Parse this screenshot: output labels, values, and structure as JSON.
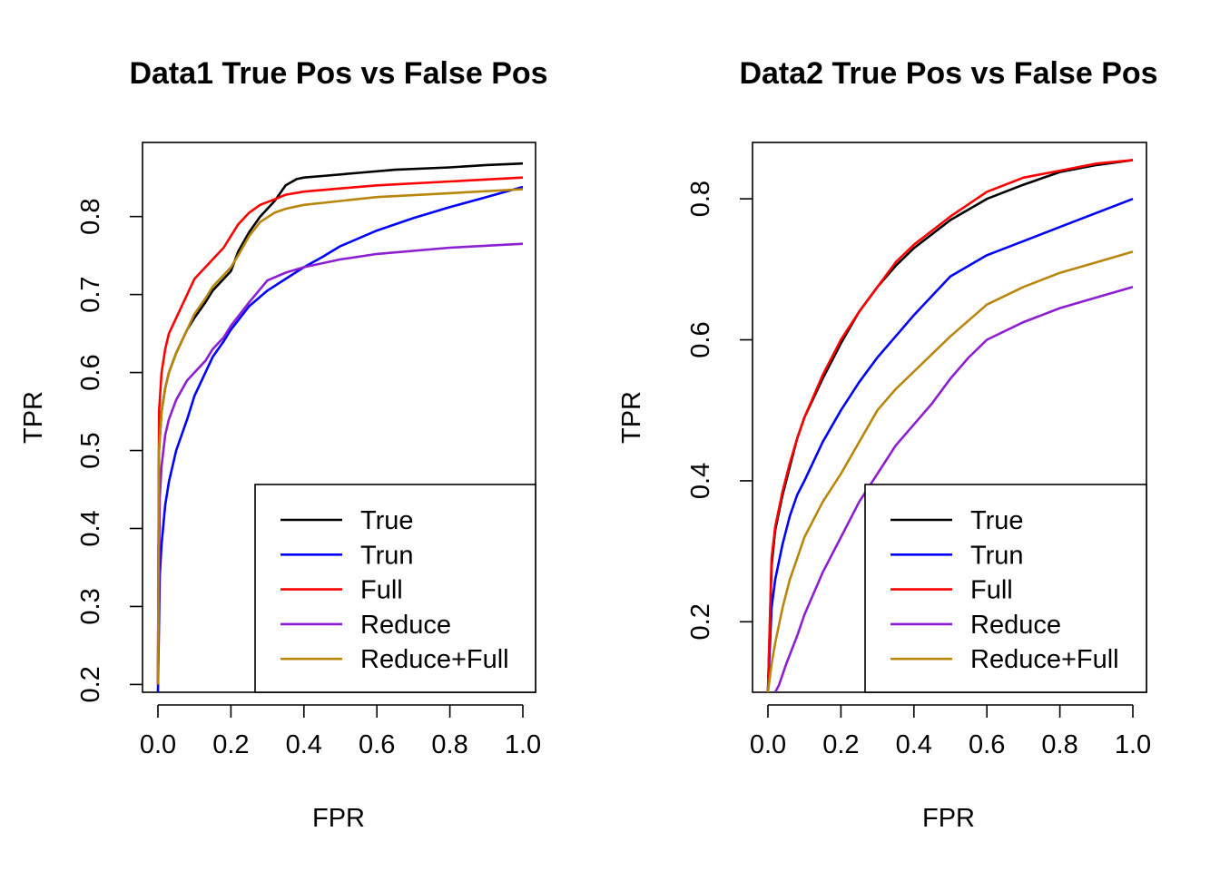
{
  "chart_data": [
    {
      "type": "line",
      "title": "Data1 True Pos vs False Pos",
      "xlabel": "FPR",
      "ylabel": "TPR",
      "xlim": [
        0,
        1
      ],
      "ylim": [
        0.19,
        0.895
      ],
      "xticks": [
        0,
        0.2,
        0.4,
        0.6,
        0.8,
        1
      ],
      "xtick_labels": [
        "0.0",
        "0.2",
        "0.4",
        "0.6",
        "0.8",
        "1.0"
      ],
      "yticks": [
        0.2,
        0.3,
        0.4,
        0.5,
        0.6,
        0.7,
        0.8
      ],
      "ytick_labels": [
        "0.2",
        "0.3",
        "0.4",
        "0.5",
        "0.6",
        "0.7",
        "0.8"
      ],
      "legend_position": "bottom-right",
      "series": [
        {
          "name": "True",
          "color": "#000000",
          "x": [
            0,
            0.003,
            0.01,
            0.02,
            0.03,
            0.05,
            0.08,
            0.1,
            0.13,
            0.15,
            0.18,
            0.2,
            0.22,
            0.25,
            0.28,
            0.32,
            0.35,
            0.38,
            0.4,
            0.45,
            0.55,
            0.65,
            0.8,
            0.9,
            1.0
          ],
          "y": [
            0.2,
            0.5,
            0.55,
            0.58,
            0.6,
            0.625,
            0.655,
            0.67,
            0.69,
            0.705,
            0.72,
            0.73,
            0.755,
            0.78,
            0.8,
            0.82,
            0.84,
            0.848,
            0.85,
            0.852,
            0.856,
            0.86,
            0.863,
            0.866,
            0.868
          ]
        },
        {
          "name": "Trun",
          "color": "#0000ff",
          "x": [
            0,
            0.005,
            0.01,
            0.02,
            0.03,
            0.05,
            0.08,
            0.1,
            0.13,
            0.15,
            0.18,
            0.2,
            0.25,
            0.3,
            0.35,
            0.4,
            0.45,
            0.5,
            0.6,
            0.7,
            0.8,
            0.9,
            1.0
          ],
          "y": [
            0.19,
            0.34,
            0.38,
            0.43,
            0.46,
            0.5,
            0.54,
            0.57,
            0.6,
            0.62,
            0.64,
            0.655,
            0.685,
            0.705,
            0.72,
            0.735,
            0.748,
            0.762,
            0.782,
            0.798,
            0.812,
            0.825,
            0.838
          ]
        },
        {
          "name": "Full",
          "color": "#ff0000",
          "x": [
            0,
            0.003,
            0.01,
            0.02,
            0.03,
            0.05,
            0.08,
            0.1,
            0.13,
            0.15,
            0.18,
            0.2,
            0.22,
            0.25,
            0.28,
            0.32,
            0.35,
            0.4,
            0.5,
            0.6,
            0.8,
            1.0
          ],
          "y": [
            0.2,
            0.55,
            0.6,
            0.63,
            0.65,
            0.67,
            0.7,
            0.72,
            0.735,
            0.745,
            0.76,
            0.775,
            0.79,
            0.805,
            0.815,
            0.822,
            0.828,
            0.832,
            0.836,
            0.84,
            0.845,
            0.85
          ]
        },
        {
          "name": "Reduce",
          "color": "#8b1fd1",
          "x": [
            0,
            0.005,
            0.01,
            0.02,
            0.03,
            0.05,
            0.08,
            0.1,
            0.13,
            0.15,
            0.18,
            0.2,
            0.25,
            0.3,
            0.35,
            0.4,
            0.5,
            0.6,
            0.8,
            1.0
          ],
          "y": [
            0.2,
            0.44,
            0.48,
            0.52,
            0.54,
            0.565,
            0.59,
            0.6,
            0.615,
            0.63,
            0.645,
            0.66,
            0.69,
            0.718,
            0.728,
            0.735,
            0.745,
            0.752,
            0.76,
            0.765
          ]
        },
        {
          "name": "Reduce+Full",
          "color": "#b8860b",
          "x": [
            0,
            0.003,
            0.01,
            0.02,
            0.03,
            0.05,
            0.08,
            0.1,
            0.13,
            0.15,
            0.18,
            0.2,
            0.22,
            0.25,
            0.28,
            0.32,
            0.35,
            0.4,
            0.5,
            0.6,
            0.8,
            1.0
          ],
          "y": [
            0.2,
            0.5,
            0.55,
            0.58,
            0.6,
            0.625,
            0.655,
            0.675,
            0.695,
            0.71,
            0.725,
            0.735,
            0.75,
            0.775,
            0.793,
            0.805,
            0.81,
            0.815,
            0.82,
            0.825,
            0.83,
            0.835
          ]
        }
      ]
    },
    {
      "type": "line",
      "title": "Data2 True Pos vs False Pos",
      "xlabel": "FPR",
      "ylabel": "TPR",
      "xlim": [
        0,
        1
      ],
      "ylim": [
        0.1,
        0.88
      ],
      "xticks": [
        0,
        0.2,
        0.4,
        0.6,
        0.8,
        1
      ],
      "xtick_labels": [
        "0.0",
        "0.2",
        "0.4",
        "0.6",
        "0.8",
        "1.0"
      ],
      "yticks": [
        0.2,
        0.4,
        0.6,
        0.8
      ],
      "ytick_labels": [
        "0.2",
        "0.4",
        "0.6",
        "0.8"
      ],
      "legend_position": "bottom-right",
      "series": [
        {
          "name": "True",
          "color": "#000000",
          "x": [
            0,
            0.01,
            0.02,
            0.04,
            0.06,
            0.08,
            0.1,
            0.15,
            0.2,
            0.25,
            0.3,
            0.35,
            0.4,
            0.5,
            0.6,
            0.7,
            0.8,
            0.9,
            1.0
          ],
          "y": [
            0.1,
            0.28,
            0.33,
            0.38,
            0.42,
            0.46,
            0.49,
            0.545,
            0.595,
            0.64,
            0.675,
            0.705,
            0.73,
            0.77,
            0.8,
            0.82,
            0.838,
            0.848,
            0.855
          ]
        },
        {
          "name": "Trun",
          "color": "#0000ff",
          "x": [
            0,
            0.01,
            0.02,
            0.04,
            0.06,
            0.08,
            0.1,
            0.15,
            0.2,
            0.25,
            0.3,
            0.35,
            0.4,
            0.5,
            0.6,
            0.7,
            0.8,
            0.9,
            1.0
          ],
          "y": [
            0.1,
            0.22,
            0.26,
            0.31,
            0.35,
            0.38,
            0.4,
            0.455,
            0.5,
            0.54,
            0.575,
            0.605,
            0.635,
            0.69,
            0.72,
            0.74,
            0.76,
            0.78,
            0.8
          ]
        },
        {
          "name": "Full",
          "color": "#ff0000",
          "x": [
            0,
            0.01,
            0.02,
            0.04,
            0.06,
            0.08,
            0.1,
            0.15,
            0.2,
            0.25,
            0.3,
            0.35,
            0.4,
            0.5,
            0.6,
            0.7,
            0.8,
            0.9,
            1.0
          ],
          "y": [
            0.1,
            0.29,
            0.335,
            0.385,
            0.425,
            0.46,
            0.49,
            0.55,
            0.6,
            0.64,
            0.675,
            0.71,
            0.735,
            0.775,
            0.81,
            0.83,
            0.84,
            0.85,
            0.855
          ]
        },
        {
          "name": "Reduce",
          "color": "#8b1fd1",
          "x": [
            0.02,
            0.03,
            0.05,
            0.08,
            0.1,
            0.15,
            0.2,
            0.25,
            0.3,
            0.35,
            0.4,
            0.45,
            0.5,
            0.55,
            0.6,
            0.7,
            0.8,
            0.9,
            1.0
          ],
          "y": [
            0.1,
            0.11,
            0.14,
            0.18,
            0.21,
            0.27,
            0.32,
            0.37,
            0.41,
            0.45,
            0.48,
            0.51,
            0.545,
            0.575,
            0.6,
            0.625,
            0.645,
            0.66,
            0.675
          ]
        },
        {
          "name": "Reduce+Full",
          "color": "#b8860b",
          "x": [
            0,
            0.01,
            0.02,
            0.04,
            0.06,
            0.08,
            0.1,
            0.15,
            0.2,
            0.25,
            0.3,
            0.35,
            0.4,
            0.45,
            0.5,
            0.6,
            0.7,
            0.8,
            0.9,
            1.0
          ],
          "y": [
            0.1,
            0.14,
            0.17,
            0.22,
            0.26,
            0.29,
            0.32,
            0.37,
            0.41,
            0.455,
            0.5,
            0.53,
            0.555,
            0.58,
            0.605,
            0.65,
            0.675,
            0.695,
            0.71,
            0.725
          ]
        }
      ]
    }
  ]
}
